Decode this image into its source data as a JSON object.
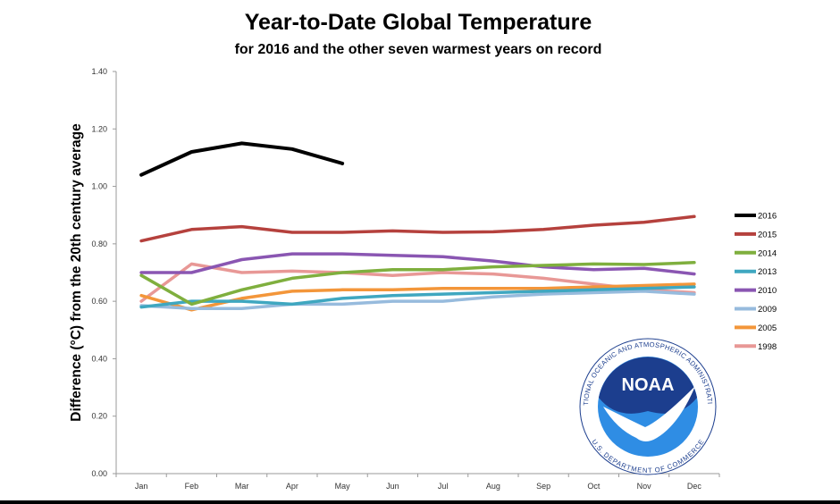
{
  "chart_data": {
    "type": "line",
    "title": "Year-to-Date Global Temperature",
    "subtitle": "for 2016 and the other seven warmest years on record",
    "xlabel": "",
    "ylabel": "Difference (°C) from the 20th century average",
    "ylim": [
      0,
      1.4
    ],
    "yticks": [
      "0.00",
      "0.20",
      "0.40",
      "0.60",
      "0.80",
      "1.00",
      "1.20",
      "1.40"
    ],
    "categories": [
      "Jan",
      "Feb",
      "Mar",
      "Apr",
      "May",
      "Jun",
      "Jul",
      "Aug",
      "Sep",
      "Oct",
      "Nov",
      "Dec"
    ],
    "legend_position": "right",
    "series": [
      {
        "name": "2016",
        "color": "#000000",
        "values": [
          1.04,
          1.12,
          1.15,
          1.13,
          1.08,
          null,
          null,
          null,
          null,
          null,
          null,
          null
        ]
      },
      {
        "name": "2015",
        "color": "#b5413d",
        "values": [
          0.81,
          0.85,
          0.86,
          0.84,
          0.84,
          0.845,
          0.84,
          0.842,
          0.85,
          0.865,
          0.875,
          0.895
        ]
      },
      {
        "name": "2014",
        "color": "#7faf3e",
        "values": [
          0.69,
          0.59,
          0.64,
          0.68,
          0.7,
          0.71,
          0.71,
          0.72,
          0.725,
          0.73,
          0.728,
          0.735
        ]
      },
      {
        "name": "2013",
        "color": "#3fa7c0",
        "values": [
          0.58,
          0.6,
          0.6,
          0.59,
          0.61,
          0.62,
          0.625,
          0.63,
          0.635,
          0.64,
          0.645,
          0.65
        ]
      },
      {
        "name": "2010",
        "color": "#8a56b2",
        "values": [
          0.7,
          0.7,
          0.745,
          0.765,
          0.765,
          0.76,
          0.755,
          0.74,
          0.72,
          0.71,
          0.715,
          0.695
        ]
      },
      {
        "name": "2009",
        "color": "#97bbdd",
        "values": [
          0.585,
          0.575,
          0.575,
          0.59,
          0.59,
          0.6,
          0.6,
          0.615,
          0.625,
          0.63,
          0.635,
          0.625
        ]
      },
      {
        "name": "2005",
        "color": "#f3963a",
        "values": [
          0.62,
          0.57,
          0.61,
          0.635,
          0.64,
          0.64,
          0.645,
          0.645,
          0.645,
          0.65,
          0.655,
          0.66
        ]
      },
      {
        "name": "1998",
        "color": "#e89896",
        "values": [
          0.6,
          0.73,
          0.7,
          0.705,
          0.7,
          0.69,
          0.7,
          0.695,
          0.68,
          0.66,
          0.64,
          0.63
        ]
      }
    ]
  },
  "logo": {
    "text": "NOAA",
    "ring_text": "NATIONAL OCEANIC AND ATMOSPHERIC ADMINISTRATION",
    "ring_text_bottom": "U.S. DEPARTMENT OF COMMERCE",
    "colors": {
      "dark": "#1c3e8e",
      "light": "#2f8de4",
      "white": "#ffffff"
    }
  }
}
